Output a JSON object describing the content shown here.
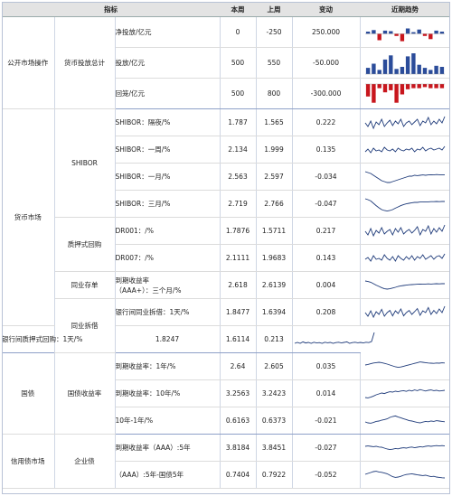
{
  "headers": {
    "indicator": "指标",
    "this_week": "本周",
    "last_week": "上周",
    "change": "变动",
    "trend": "近期趋势"
  },
  "groups": {
    "omo": "公开市场操作",
    "omo_sub": "货币投放总计",
    "money_market": "货币市场",
    "shibor": "SHIBOR",
    "repo": "质押式回购",
    "ncd": "同业存单",
    "interbank": "同业拆借",
    "govt": "国债",
    "govt_yield": "国债收益率",
    "credit": "信用债市场",
    "corp": "企业债"
  },
  "rows": [
    {
      "label": "净投放/亿元",
      "this_week": "0",
      "last_week": "-250",
      "change": "250.000",
      "dir": "pos",
      "spark": "bar_net",
      "bars": [
        0.2,
        0.35,
        -0.6,
        0.3,
        0.25,
        -0.2,
        -0.7,
        0.5,
        0.15,
        0.4,
        -0.2,
        -0.5,
        0.3,
        0.2
      ]
    },
    {
      "label": "投放/亿元",
      "this_week": "500",
      "last_week": "550",
      "change": "-50.000",
      "dir": "neg",
      "spark": "bar_pos",
      "bars": [
        0.3,
        0.5,
        0.2,
        0.7,
        0.9,
        0.25,
        0.35,
        0.85,
        1.0,
        0.45,
        0.3,
        0.2,
        0.4,
        0.35
      ]
    },
    {
      "label": "回笼/亿元",
      "this_week": "500",
      "last_week": "800",
      "change": "-300.000",
      "dir": "neg",
      "spark": "bar_neg",
      "bars": [
        -0.6,
        -0.9,
        -0.2,
        -0.4,
        -0.3,
        -0.9,
        -0.5,
        -0.25,
        -0.2,
        -0.2,
        -0.15,
        -0.2,
        -0.2,
        -0.2
      ]
    },
    {
      "label": "SHIBOR：隔夜/%",
      "this_week": "1.787",
      "last_week": "1.565",
      "change": "0.222",
      "dir": "pos",
      "spark": "line",
      "pts": [
        0.5,
        0.3,
        0.6,
        0.2,
        0.55,
        0.4,
        0.7,
        0.3,
        0.5,
        0.65,
        0.35,
        0.6,
        0.45,
        0.7,
        0.3,
        0.5,
        0.6,
        0.4,
        0.55,
        0.7,
        0.35,
        0.6,
        0.5,
        0.8,
        0.4,
        0.6,
        0.45,
        0.7,
        0.5,
        0.85
      ]
    },
    {
      "label": "SHIBOR：一周/%",
      "this_week": "2.134",
      "last_week": "1.999",
      "change": "0.135",
      "dir": "pos",
      "spark": "line",
      "pts": [
        0.4,
        0.55,
        0.35,
        0.6,
        0.45,
        0.5,
        0.4,
        0.65,
        0.5,
        0.45,
        0.55,
        0.4,
        0.6,
        0.5,
        0.45,
        0.55,
        0.5,
        0.6,
        0.4,
        0.55,
        0.5,
        0.65,
        0.45,
        0.55,
        0.6,
        0.5,
        0.55,
        0.6,
        0.5,
        0.7
      ]
    },
    {
      "label": "SHIBOR：一月/%",
      "this_week": "2.563",
      "last_week": "2.597",
      "change": "-0.034",
      "dir": "neg",
      "spark": "line",
      "pts": [
        0.8,
        0.75,
        0.7,
        0.6,
        0.5,
        0.4,
        0.3,
        0.25,
        0.2,
        0.2,
        0.25,
        0.3,
        0.35,
        0.4,
        0.45,
        0.5,
        0.55,
        0.55,
        0.6,
        0.58,
        0.6,
        0.62,
        0.6,
        0.62,
        0.63,
        0.62,
        0.64,
        0.63,
        0.62,
        0.63
      ]
    },
    {
      "label": "SHIBOR：三月/%",
      "this_week": "2.719",
      "last_week": "2.766",
      "change": "-0.047",
      "dir": "neg",
      "spark": "line",
      "pts": [
        0.8,
        0.75,
        0.68,
        0.55,
        0.42,
        0.3,
        0.2,
        0.15,
        0.12,
        0.15,
        0.2,
        0.28,
        0.35,
        0.42,
        0.48,
        0.52,
        0.55,
        0.58,
        0.6,
        0.6,
        0.62,
        0.62,
        0.63,
        0.63,
        0.64,
        0.64,
        0.65,
        0.64,
        0.65,
        0.65
      ]
    },
    {
      "label": "DR001：/%",
      "this_week": "1.7876",
      "last_week": "1.5711",
      "change": "0.217",
      "dir": "pos",
      "spark": "line",
      "pts": [
        0.5,
        0.3,
        0.65,
        0.25,
        0.55,
        0.4,
        0.7,
        0.35,
        0.5,
        0.6,
        0.3,
        0.65,
        0.45,
        0.7,
        0.35,
        0.5,
        0.6,
        0.4,
        0.55,
        0.75,
        0.3,
        0.6,
        0.5,
        0.8,
        0.35,
        0.65,
        0.45,
        0.7,
        0.5,
        0.85
      ]
    },
    {
      "label": "DR007：/%",
      "this_week": "2.1111",
      "last_week": "1.9683",
      "change": "0.143",
      "dir": "pos",
      "spark": "line",
      "pts": [
        0.45,
        0.55,
        0.35,
        0.65,
        0.45,
        0.5,
        0.4,
        0.7,
        0.5,
        0.4,
        0.6,
        0.35,
        0.65,
        0.5,
        0.4,
        0.6,
        0.45,
        0.65,
        0.4,
        0.6,
        0.5,
        0.7,
        0.45,
        0.55,
        0.65,
        0.45,
        0.6,
        0.65,
        0.5,
        0.75
      ]
    },
    {
      "label": "到期收益率\n（AAA+）：三个月/%",
      "this_week": "2.618",
      "last_week": "2.6139",
      "change": "0.004",
      "dir": "pos",
      "spark": "line",
      "pts": [
        0.75,
        0.72,
        0.68,
        0.6,
        0.52,
        0.45,
        0.38,
        0.32,
        0.3,
        0.32,
        0.36,
        0.4,
        0.45,
        0.48,
        0.5,
        0.52,
        0.54,
        0.55,
        0.56,
        0.57,
        0.58,
        0.57,
        0.58,
        0.59,
        0.58,
        0.59,
        0.6,
        0.59,
        0.6,
        0.6
      ]
    },
    {
      "label": "银行间同业拆借：1天/%",
      "this_week": "1.8477",
      "last_week": "1.6394",
      "change": "0.208",
      "dir": "pos",
      "spark": "line",
      "pts": [
        0.5,
        0.3,
        0.6,
        0.25,
        0.55,
        0.4,
        0.68,
        0.3,
        0.5,
        0.62,
        0.32,
        0.6,
        0.45,
        0.7,
        0.32,
        0.5,
        0.62,
        0.4,
        0.55,
        0.72,
        0.35,
        0.6,
        0.5,
        0.78,
        0.4,
        0.62,
        0.45,
        0.7,
        0.5,
        0.85
      ]
    },
    {
      "label": "银行间质押式回购：1天/%",
      "this_week": "1.8247",
      "last_week": "1.6114",
      "change": "0.213",
      "dir": "pos",
      "spark": "line",
      "pts": [
        0.3,
        0.35,
        0.3,
        0.38,
        0.32,
        0.35,
        0.3,
        0.36,
        0.32,
        0.34,
        0.3,
        0.36,
        0.33,
        0.35,
        0.3,
        0.34,
        0.36,
        0.32,
        0.35,
        0.38,
        0.3,
        0.34,
        0.36,
        0.33,
        0.35,
        0.32,
        0.36,
        0.34,
        0.4,
        0.9
      ]
    },
    {
      "label": "到期收益率：1年/%",
      "this_week": "2.64",
      "last_week": "2.605",
      "change": "0.035",
      "dir": "pos",
      "spark": "line",
      "pts": [
        0.55,
        0.58,
        0.62,
        0.66,
        0.68,
        0.7,
        0.68,
        0.64,
        0.6,
        0.55,
        0.5,
        0.45,
        0.42,
        0.44,
        0.48,
        0.52,
        0.56,
        0.6,
        0.64,
        0.68,
        0.72,
        0.7,
        0.68,
        0.66,
        0.65,
        0.64,
        0.66,
        0.65,
        0.67,
        0.66
      ]
    },
    {
      "label": "到期收益率：10年/%",
      "this_week": "3.2563",
      "last_week": "3.2423",
      "change": "0.014",
      "dir": "pos",
      "spark": "line",
      "pts": [
        0.3,
        0.28,
        0.32,
        0.38,
        0.45,
        0.5,
        0.55,
        0.52,
        0.58,
        0.62,
        0.6,
        0.65,
        0.62,
        0.66,
        0.68,
        0.64,
        0.7,
        0.66,
        0.72,
        0.68,
        0.74,
        0.7,
        0.66,
        0.7,
        0.72,
        0.68,
        0.7,
        0.66,
        0.68,
        0.7
      ]
    },
    {
      "label": "10年-1年/%",
      "this_week": "0.6163",
      "last_week": "0.6373",
      "change": "-0.021",
      "dir": "neg",
      "spark": "line",
      "pts": [
        0.45,
        0.4,
        0.38,
        0.42,
        0.48,
        0.5,
        0.55,
        0.58,
        0.62,
        0.7,
        0.75,
        0.78,
        0.72,
        0.68,
        0.62,
        0.58,
        0.52,
        0.5,
        0.46,
        0.42,
        0.4,
        0.44,
        0.48,
        0.46,
        0.5,
        0.48,
        0.52,
        0.5,
        0.48,
        0.46
      ]
    },
    {
      "label": "到期收益率（AAA）:5年",
      "this_week": "3.8184",
      "last_week": "3.8451",
      "change": "-0.027",
      "dir": "neg",
      "spark": "line",
      "pts": [
        0.6,
        0.62,
        0.6,
        0.58,
        0.6,
        0.56,
        0.55,
        0.5,
        0.45,
        0.42,
        0.44,
        0.48,
        0.46,
        0.5,
        0.52,
        0.5,
        0.54,
        0.56,
        0.52,
        0.55,
        0.58,
        0.56,
        0.6,
        0.62,
        0.6,
        0.62,
        0.64,
        0.62,
        0.64,
        0.62
      ]
    },
    {
      "label": "（AAA）:5年-国债5年",
      "this_week": "0.7404",
      "last_week": "0.7922",
      "change": "-0.052",
      "dir": "neg",
      "spark": "line",
      "pts": [
        0.55,
        0.6,
        0.65,
        0.7,
        0.72,
        0.68,
        0.66,
        0.62,
        0.58,
        0.5,
        0.42,
        0.38,
        0.4,
        0.44,
        0.5,
        0.54,
        0.56,
        0.58,
        0.55,
        0.52,
        0.5,
        0.48,
        0.5,
        0.46,
        0.42,
        0.44,
        0.4,
        0.38,
        0.36,
        0.35
      ]
    }
  ],
  "colors": {
    "line": "#1f3b7a",
    "bar_up": "#2b4c9a",
    "bar_down": "#c8161d",
    "pos": "#e00000",
    "neg": "#0a9a2a"
  }
}
